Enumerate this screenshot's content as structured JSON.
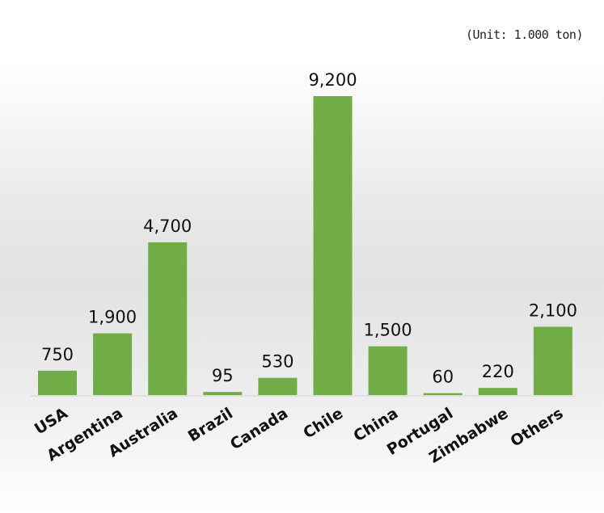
{
  "unit_note": "(Unit: 1.000 ton)",
  "colors": {
    "bar": "#70ad47",
    "baseline": "#d0d0d0"
  },
  "chart_data": {
    "type": "bar",
    "categories": [
      "USA",
      "Argentina",
      "Australia",
      "Brazil",
      "Canada",
      "Chile",
      "China",
      "Portugal",
      "Zimbabwe",
      "Others"
    ],
    "values": [
      750,
      1900,
      4700,
      95,
      530,
      9200,
      1500,
      60,
      220,
      2100
    ],
    "value_labels": [
      "750",
      "1,900",
      "4,700",
      "95",
      "530",
      "9,200",
      "1,500",
      "60",
      "220",
      "2,100"
    ],
    "title": "",
    "xlabel": "",
    "ylabel": "",
    "ylim": [
      0,
      9200
    ],
    "grid": false,
    "legend": "none"
  }
}
